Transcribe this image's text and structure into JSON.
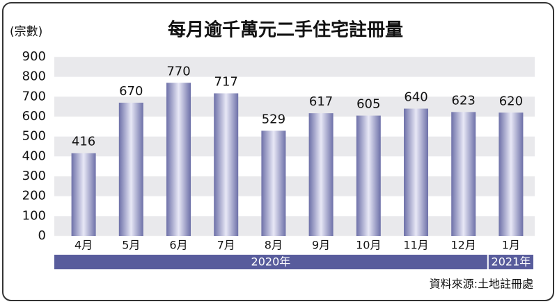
{
  "chart_data": {
    "type": "bar",
    "title": "每月逾千萬元二手住宅註冊量",
    "y_label": "(宗數)",
    "categories": [
      "4月",
      "5月",
      "6月",
      "7月",
      "8月",
      "9月",
      "10月",
      "11月",
      "12月",
      "1月"
    ],
    "values": [
      416,
      670,
      770,
      717,
      529,
      617,
      605,
      640,
      623,
      620
    ],
    "color": "#6d70a8",
    "ylim": [
      0,
      900
    ],
    "yticks": [
      0,
      100,
      200,
      300,
      400,
      500,
      600,
      700,
      800,
      900
    ],
    "grid": true,
    "periods": [
      {
        "label": "2020年",
        "from": "4月",
        "to": "12月"
      },
      {
        "label": "2021年",
        "from": "1月",
        "to": "1月"
      }
    ],
    "source": "資料來源:土地註冊處"
  }
}
